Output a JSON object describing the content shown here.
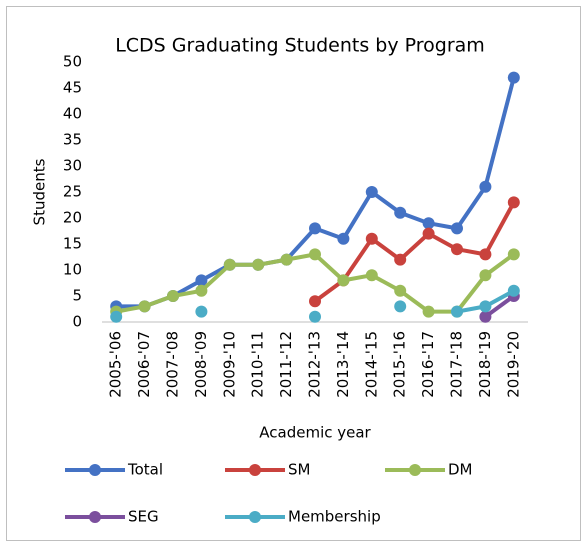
{
  "chart_data": {
    "type": "line",
    "title": "LCDS Graduating Students by Program",
    "x_label": "Academic year",
    "y_label": "Students",
    "categories": [
      "2005-'06",
      "2006-'07",
      "2007-'08",
      "2008-'09",
      "2009-'10",
      "2010-'11",
      "2011-'12",
      "2012-'13",
      "2013-'14",
      "2014-'15",
      "2015-'16",
      "2016-'17",
      "2017-'18",
      "2018-'19",
      "2019-'20"
    ],
    "series": [
      {
        "name": "Total",
        "color": "#4472c4",
        "values": [
          3,
          3,
          5,
          8,
          11,
          11,
          12,
          18,
          16,
          25,
          21,
          19,
          18,
          26,
          47
        ]
      },
      {
        "name": "SM",
        "color": "#c9423d",
        "values": [
          null,
          null,
          null,
          null,
          null,
          null,
          null,
          4,
          8,
          16,
          12,
          17,
          14,
          13,
          23
        ]
      },
      {
        "name": "DM",
        "color": "#9bbb59",
        "values": [
          2,
          3,
          5,
          6,
          11,
          11,
          12,
          13,
          8,
          9,
          6,
          2,
          2,
          9,
          13
        ]
      },
      {
        "name": "SEG",
        "color": "#7b4f9d",
        "values": [
          null,
          null,
          null,
          null,
          null,
          null,
          null,
          null,
          null,
          null,
          null,
          null,
          null,
          1,
          5
        ]
      },
      {
        "name": "Membership",
        "color": "#4bacc6",
        "values": [
          1,
          null,
          null,
          2,
          null,
          null,
          null,
          1,
          null,
          null,
          3,
          null,
          2,
          3,
          6
        ]
      }
    ],
    "ylim": [
      0,
      50
    ],
    "yticks": [
      0,
      5,
      10,
      15,
      20,
      25,
      30,
      35,
      40,
      45,
      50
    ],
    "grid": false,
    "legend": "bottom"
  }
}
